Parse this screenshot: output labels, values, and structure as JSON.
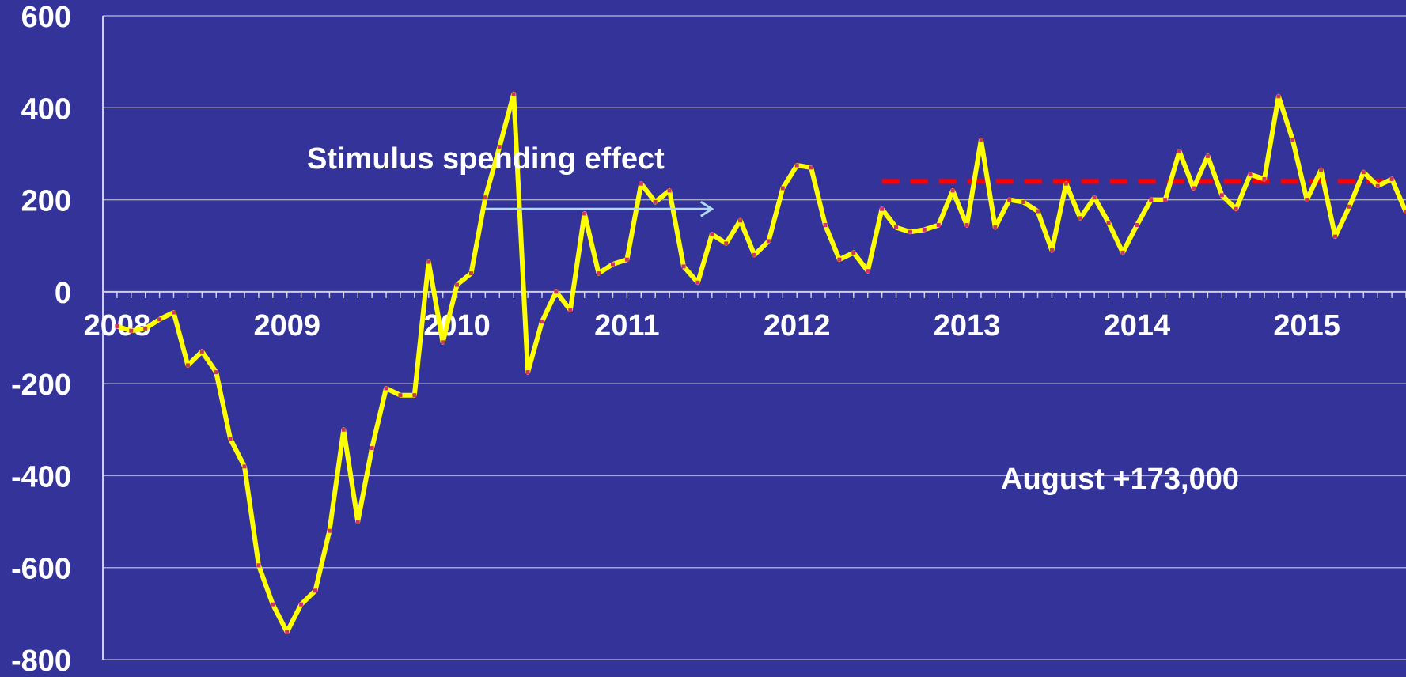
{
  "chart_data": {
    "type": "line",
    "title": "",
    "xlabel": "",
    "ylabel": "",
    "ylim": [
      -800,
      600
    ],
    "yticks": [
      600,
      400,
      200,
      0,
      -200,
      -400,
      -600,
      -800
    ],
    "grid": true,
    "xticks": [
      {
        "label": "2008",
        "x": 2008.0
      },
      {
        "label": "2009",
        "x": 2009.0
      },
      {
        "label": "2010",
        "x": 2010.0
      },
      {
        "label": "2011",
        "x": 2011.0
      },
      {
        "label": "2012",
        "x": 2012.0
      },
      {
        "label": "2013",
        "x": 2013.0
      },
      {
        "label": "2014",
        "x": 2014.0
      },
      {
        "label": "2015",
        "x": 2015.0
      }
    ],
    "x_start": 2007.9167,
    "x_end": 2015.5833,
    "series": [
      {
        "color": "#ffff00",
        "marker_color": "#cc3366",
        "x_start": "2008-01",
        "period": "monthly",
        "values": [
          -75,
          -85,
          -80,
          -60,
          -45,
          -160,
          -130,
          -175,
          -320,
          -380,
          -595,
          -680,
          -740,
          -680,
          -650,
          -520,
          -300,
          -500,
          -340,
          -210,
          -225,
          -225,
          65,
          -110,
          15,
          40,
          205,
          315,
          430,
          -175,
          -65,
          0,
          -40,
          170,
          40,
          60,
          70,
          235,
          195,
          220,
          55,
          20,
          125,
          105,
          155,
          80,
          110,
          225,
          275,
          270,
          145,
          70,
          85,
          45,
          180,
          140,
          130,
          135,
          145,
          220,
          145,
          330,
          140,
          200,
          195,
          175,
          90,
          235,
          160,
          205,
          150,
          85,
          145,
          200,
          200,
          305,
          225,
          295,
          210,
          180,
          255,
          245,
          425,
          330,
          200,
          265,
          120,
          185,
          260,
          230,
          245,
          173
        ]
      }
    ],
    "reference_line": {
      "y": 240,
      "x_from": "2012-07",
      "x_to": "2015-07",
      "color": "#ff0000",
      "style": "dashed"
    },
    "annotations": [
      {
        "text": "Stimulus spending effect",
        "arrow_from": "2010-03",
        "arrow_to": "2011-07",
        "arrow_y": 180,
        "arrow_color": "#b0d8f0"
      },
      {
        "text": "August +173,000"
      }
    ]
  }
}
